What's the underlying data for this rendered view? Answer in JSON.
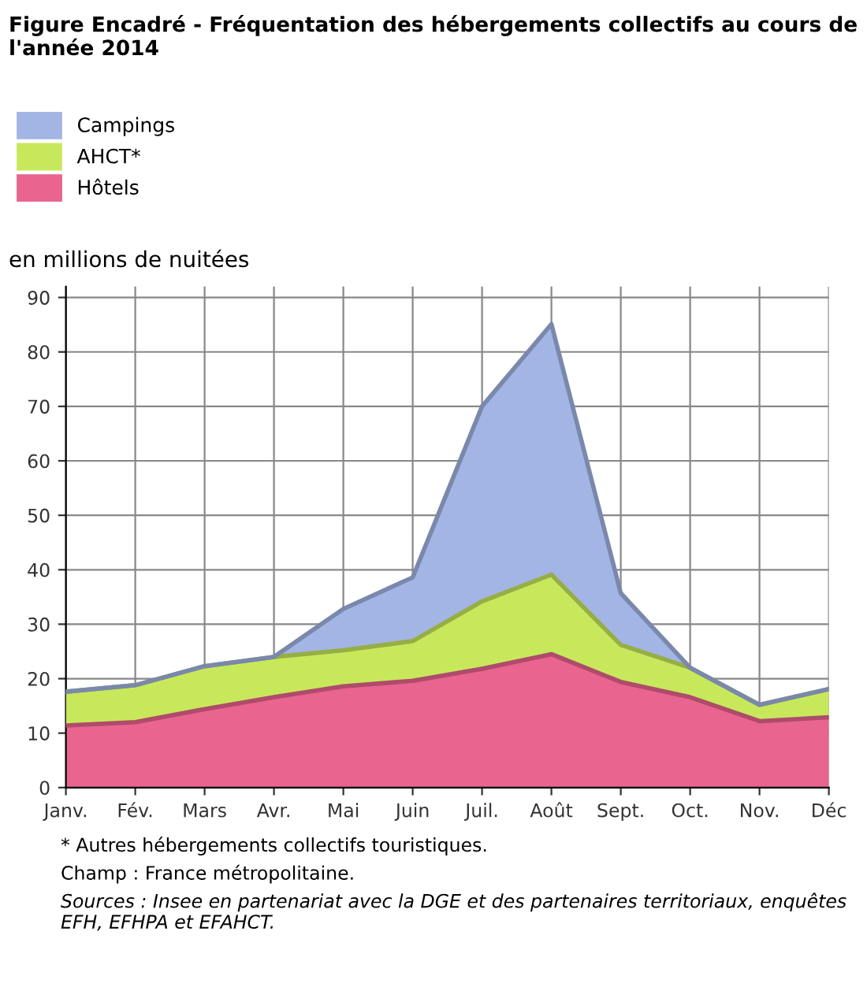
{
  "chart_data": {
    "type": "area",
    "stacked": true,
    "title": "Figure Encadré - Fréquentation des hébergements collectifs au cours de l'année 2014",
    "ylabel": "en millions de nuitées",
    "categories": [
      "Janv.",
      "Fév.",
      "Mars",
      "Avr.",
      "Mai",
      "Juin",
      "Juil.",
      "Août",
      "Sept.",
      "Oct.",
      "Nov.",
      "Déc"
    ],
    "series": [
      {
        "name": "Hôtels",
        "color": "#e9648f",
        "values": [
          11.4,
          12.0,
          14.4,
          16.6,
          18.6,
          19.6,
          21.8,
          24.5,
          19.4,
          16.6,
          12.2,
          12.9
        ]
      },
      {
        "name": "AHCT*",
        "color": "#c8e85c",
        "values": [
          6.2,
          6.8,
          7.9,
          7.4,
          6.6,
          7.3,
          12.4,
          14.6,
          6.8,
          5.4,
          3.0,
          5.2
        ]
      },
      {
        "name": "Campings",
        "color": "#a3b5e4",
        "values": [
          0,
          0,
          0,
          0,
          7.6,
          11.7,
          35.8,
          46.0,
          9.5,
          0,
          0,
          0
        ]
      }
    ],
    "ylim": [
      0,
      92
    ],
    "yticks": [
      0,
      10,
      20,
      30,
      40,
      50,
      60,
      70,
      80,
      90
    ],
    "grid": true,
    "legend": "top",
    "annotations": [
      "* Autres hébergements collectifs touristiques.",
      "Champ : France métropolitaine.",
      "Sources : Insee en partenariat avec la DGE et des partenaires territoriaux, enquêtes EFH, EFHPA et EFAHCT."
    ]
  }
}
